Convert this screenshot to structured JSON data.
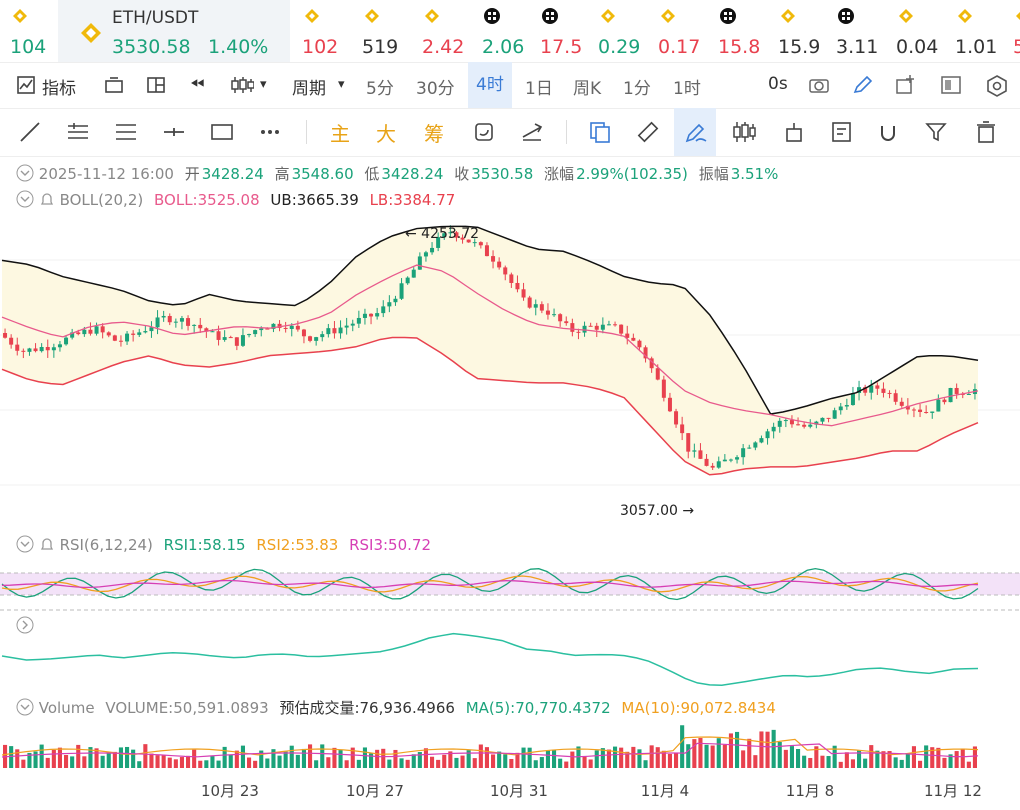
{
  "tickers": [
    {
      "value": "104",
      "trend": "up",
      "icon": "bnb-icon"
    },
    {
      "value": "102",
      "trend": "dn",
      "icon": "bnb-icon"
    },
    {
      "value": "519",
      "trend": "nt",
      "icon": "bnb-icon"
    },
    {
      "value": "2.42",
      "trend": "dn",
      "icon": "bnb-icon"
    },
    {
      "value": "2.06",
      "trend": "up",
      "icon": "token-icon"
    },
    {
      "value": "17.5",
      "trend": "dn",
      "icon": "token-icon"
    },
    {
      "value": "0.29",
      "trend": "up",
      "icon": "bnb-icon"
    },
    {
      "value": "0.17",
      "trend": "dn",
      "icon": "bnb-icon"
    },
    {
      "value": "15.8",
      "trend": "dn",
      "icon": "token-icon"
    },
    {
      "value": "15.9",
      "trend": "nt",
      "icon": "bnb-icon"
    },
    {
      "value": "3.11",
      "trend": "nt",
      "icon": "token-icon"
    },
    {
      "value": "0.04",
      "trend": "nt",
      "icon": "bnb-icon"
    },
    {
      "value": "1.01",
      "trend": "nt",
      "icon": "bnb-icon"
    },
    {
      "value": "5",
      "trend": "dn",
      "icon": "bnb-icon"
    }
  ],
  "main_ticker": {
    "symbol": "ETH/USDT",
    "price": "3530.58",
    "change": "1.40%"
  },
  "toolbar": {
    "indicator": "指标",
    "period": "周期",
    "p5m": "5分",
    "p30m": "30分",
    "p4h": "4时",
    "p1d": "1日",
    "p1w": "周K",
    "p1m": "1分",
    "p1h": "1时",
    "countdown": "0s"
  },
  "drawtools": {
    "main": "主",
    "big": "大",
    "chip": "筹"
  },
  "info": {
    "date": "2025-11-12 16:00",
    "open_label": "开",
    "open": "3428.24",
    "high_label": "高",
    "high": "3548.60",
    "low_label": "低",
    "low": "3428.24",
    "close_label": "收",
    "close": "3530.58",
    "chg_label": "涨幅",
    "chg": "2.99%(102.35)",
    "amp_label": "振幅",
    "amp": "3.51%"
  },
  "boll": {
    "label": "BOLL(20,2)",
    "mid": "BOLL:3525.08",
    "ub": "UB:3665.39",
    "lb": "LB:3384.77"
  },
  "rsi": {
    "label": "RSI(6,12,24)",
    "r1": "RSI1:58.15",
    "r2": "RSI2:53.83",
    "r3": "RSI3:50.72"
  },
  "volume": {
    "label": "Volume",
    "vol": "VOLUME:50,591.0893",
    "est": "预估成交量:76,936.4966",
    "ma5": "MA(5):70,770.4372",
    "ma10": "MA(10):90,072.8434"
  },
  "colors": {
    "up": "#1ba27a",
    "down": "#e8414e",
    "boll_mid": "#e85a8c",
    "band_fill": "#fdf8e1",
    "rsi1": "#1ba27a",
    "rsi2": "#f0a020",
    "rsi3": "#d63fb5",
    "accent": "#3a7bd5"
  },
  "chart_data": {
    "type": "candlestick",
    "x_labels": [
      "10月 23",
      "10月 27",
      "10月 31",
      "11月 4",
      "11月 8",
      "11月 12"
    ],
    "price_high_label": "4253.72",
    "price_low_label": "3057.00",
    "price_range": [
      3000,
      4300
    ],
    "close_path": [
      3780,
      3700,
      3720,
      3760,
      3800,
      3740,
      3790,
      3850,
      3830,
      3770,
      3740,
      3810,
      3820,
      3760,
      3790,
      3830,
      3870,
      3990,
      4150,
      4230,
      4170,
      4090,
      3920,
      3880,
      3790,
      3810,
      3800,
      3710,
      3500,
      3260,
      3180,
      3250,
      3330,
      3400,
      3360,
      3420,
      3520,
      3540,
      3470,
      3430,
      3520,
      3530
    ],
    "ub_path": [
      4100,
      4080,
      4030,
      4000,
      3970,
      3920,
      3900,
      3950,
      3920,
      3910,
      3900,
      3990,
      4120,
      4200,
      4240,
      4250,
      4250,
      4200,
      4150,
      4140,
      4090,
      4030,
      4000,
      3990,
      3850,
      3650,
      3420,
      3450,
      3490,
      3520,
      3600,
      3680,
      3680,
      3660
    ],
    "mid_path": [
      3850,
      3800,
      3760,
      3810,
      3830,
      3810,
      3770,
      3790,
      3810,
      3800,
      3820,
      3860,
      3950,
      4020,
      4080,
      4050,
      3960,
      3880,
      3820,
      3800,
      3790,
      3770,
      3650,
      3530,
      3470,
      3440,
      3420,
      3390,
      3370,
      3400,
      3430,
      3470,
      3500,
      3525
    ],
    "lb_path": [
      3620,
      3570,
      3550,
      3600,
      3650,
      3680,
      3640,
      3630,
      3650,
      3680,
      3690,
      3700,
      3720,
      3760,
      3760,
      3680,
      3580,
      3570,
      3560,
      3560,
      3540,
      3500,
      3360,
      3220,
      3150,
      3180,
      3190,
      3190,
      3210,
      3230,
      3260,
      3260,
      3330,
      3385
    ],
    "rsi_current": [
      58.15,
      53.83,
      50.72
    ]
  }
}
